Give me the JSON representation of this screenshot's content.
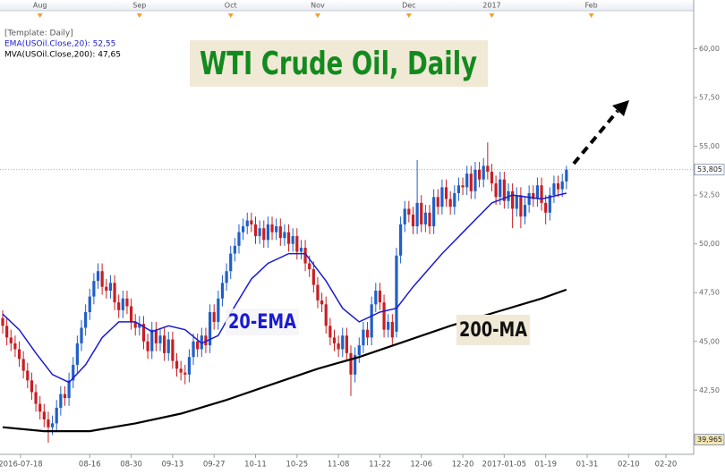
{
  "chart_data": {
    "type": "candlestick",
    "title": "WTI Crude Oil, Daily",
    "template": "[Template: Daily]",
    "annotations": [
      "20-EMA",
      "200-MA"
    ],
    "up_color": "#1f5fc8",
    "down_color": "#c81e23",
    "xlim": [
      -0.65,
      166.7
    ],
    "ylim": [
      39.35,
      61.95
    ],
    "yticks": [
      {
        "value": 42.5,
        "label": "42,50"
      },
      {
        "value": 45,
        "label": "45,00"
      },
      {
        "value": 47.5,
        "label": "47,50"
      },
      {
        "value": 50,
        "label": "50,00"
      },
      {
        "value": 52.5,
        "label": "52,50"
      },
      {
        "value": 55,
        "label": "55,00"
      },
      {
        "value": 57.5,
        "label": "57,50"
      },
      {
        "value": 60,
        "label": "60,00"
      }
    ],
    "xticks": [
      {
        "value": 4.3,
        "label": "2016-07-18"
      },
      {
        "value": 21,
        "label": "08-16"
      },
      {
        "value": 31,
        "label": "08-30"
      },
      {
        "value": 41,
        "label": "09-13"
      },
      {
        "value": 51,
        "label": "09-27"
      },
      {
        "value": 61,
        "label": "10-11"
      },
      {
        "value": 71,
        "label": "10-25"
      },
      {
        "value": 81,
        "label": "11-08"
      },
      {
        "value": 91,
        "label": "11-22"
      },
      {
        "value": 101,
        "label": "12-06"
      },
      {
        "value": 111,
        "label": "12-20"
      },
      {
        "value": 121,
        "label": "2017-01-05"
      },
      {
        "value": 131,
        "label": "01-19"
      },
      {
        "value": 141,
        "label": "01-31"
      },
      {
        "value": 151,
        "label": "02-10"
      },
      {
        "value": 160,
        "label": "02-20"
      }
    ],
    "month_ticks": [
      {
        "value": 9,
        "label": "Aug"
      },
      {
        "value": 33,
        "label": "Sep"
      },
      {
        "value": 55,
        "label": "Oct"
      },
      {
        "value": 76,
        "label": "Nov"
      },
      {
        "value": 98,
        "label": "Dec"
      },
      {
        "value": 118,
        "label": "2017"
      },
      {
        "value": 142,
        "label": "Feb"
      }
    ],
    "price_markers": [
      {
        "value": 53.805,
        "label": "53,805",
        "color": "#ffffff"
      },
      {
        "value": 39.965,
        "label": "39,965",
        "color": "#f3e6b4"
      }
    ],
    "series": [
      {
        "name": "EMA(USOil.Close,20): 52,55",
        "color": "#1a1ad2",
        "x": [
          0,
          4,
          8,
          12,
          16,
          20,
          24,
          28,
          32,
          36,
          40,
          44,
          48,
          52,
          56,
          60,
          64,
          69,
          73,
          78,
          82,
          86,
          91,
          95,
          99,
          106,
          112,
          118,
          123,
          130,
          136
        ],
        "values": [
          46.4,
          45.6,
          44.4,
          43.3,
          42.9,
          43.8,
          45.2,
          46.0,
          46.0,
          45.5,
          45.8,
          45.6,
          44.9,
          45.3,
          46.8,
          48.2,
          49.0,
          49.5,
          49.5,
          48.1,
          46.7,
          46.0,
          46.5,
          46.7,
          47.8,
          49.5,
          50.8,
          52.1,
          52.5,
          52.3,
          52.6
        ]
      },
      {
        "name": "MVA(USOil.Close,200): 47,65",
        "color": "#000000",
        "x": [
          0,
          10,
          21,
          32,
          43,
          54,
          65,
          76,
          86,
          97,
          108,
          119,
          130,
          136
        ],
        "values": [
          40.6,
          40.4,
          40.4,
          40.8,
          41.3,
          42.0,
          42.8,
          43.6,
          44.2,
          45.0,
          45.8,
          46.5,
          47.2,
          47.65
        ]
      }
    ],
    "candles": [
      [
        46.2,
        46.6,
        45.4,
        45.8
      ],
      [
        45.8,
        46.2,
        44.8,
        45.2
      ],
      [
        45.2,
        45.6,
        44.5,
        44.9
      ],
      [
        44.9,
        45.3,
        44.2,
        44.6
      ],
      [
        44.6,
        45.0,
        43.7,
        44.1
      ],
      [
        44.1,
        44.5,
        43.1,
        43.5
      ],
      [
        43.5,
        43.9,
        42.6,
        43.0
      ],
      [
        43.0,
        43.4,
        42.0,
        42.4
      ],
      [
        42.4,
        42.8,
        41.4,
        41.8
      ],
      [
        41.8,
        42.2,
        41.0,
        41.4
      ],
      [
        41.4,
        41.8,
        40.6,
        41.0
      ],
      [
        41.0,
        41.4,
        39.8,
        40.6
      ],
      [
        40.6,
        41.2,
        40.2,
        40.8
      ],
      [
        40.8,
        42.0,
        40.4,
        41.6
      ],
      [
        41.6,
        42.7,
        41.2,
        42.3
      ],
      [
        42.3,
        42.7,
        41.7,
        42.1
      ],
      [
        42.1,
        43.4,
        41.7,
        43.0
      ],
      [
        43.0,
        44.2,
        42.6,
        43.8
      ],
      [
        43.8,
        45.3,
        43.4,
        44.9
      ],
      [
        44.9,
        46.1,
        44.5,
        45.7
      ],
      [
        45.7,
        46.9,
        45.3,
        46.5
      ],
      [
        46.5,
        47.7,
        46.1,
        47.3
      ],
      [
        47.3,
        48.5,
        46.9,
        48.1
      ],
      [
        48.1,
        49.0,
        47.7,
        48.6
      ],
      [
        48.6,
        49.0,
        47.4,
        47.8
      ],
      [
        47.8,
        48.2,
        47.2,
        47.6
      ],
      [
        47.6,
        48.4,
        47.2,
        48.0
      ],
      [
        48.0,
        48.4,
        46.6,
        47.0
      ],
      [
        47.0,
        47.4,
        46.2,
        46.6
      ],
      [
        46.6,
        47.6,
        46.2,
        47.2
      ],
      [
        47.2,
        47.6,
        46.4,
        46.8
      ],
      [
        46.8,
        47.2,
        45.6,
        46.0
      ],
      [
        46.0,
        46.4,
        45.3,
        45.7
      ],
      [
        45.7,
        46.3,
        45.3,
        45.9
      ],
      [
        45.9,
        46.3,
        44.6,
        45.0
      ],
      [
        45.0,
        45.4,
        44.1,
        44.5
      ],
      [
        44.5,
        46.0,
        44.1,
        45.6
      ],
      [
        45.6,
        46.0,
        44.5,
        44.9
      ],
      [
        44.9,
        45.7,
        44.5,
        45.3
      ],
      [
        45.3,
        45.7,
        44.0,
        44.4
      ],
      [
        44.4,
        45.5,
        44.0,
        45.1
      ],
      [
        45.1,
        45.5,
        43.6,
        44.0
      ],
      [
        44.0,
        44.4,
        43.2,
        43.6
      ],
      [
        43.6,
        44.0,
        43.0,
        43.4
      ],
      [
        43.4,
        43.8,
        42.8,
        43.3
      ],
      [
        43.3,
        44.6,
        42.9,
        44.2
      ],
      [
        44.2,
        45.4,
        43.8,
        45.0
      ],
      [
        45.0,
        45.4,
        44.2,
        44.6
      ],
      [
        44.6,
        45.7,
        44.2,
        45.3
      ],
      [
        45.3,
        45.7,
        44.4,
        44.8
      ],
      [
        44.8,
        46.9,
        44.4,
        46.5
      ],
      [
        46.5,
        46.9,
        45.6,
        46.0
      ],
      [
        46.0,
        47.6,
        45.6,
        47.2
      ],
      [
        47.2,
        48.4,
        46.8,
        48.0
      ],
      [
        48.0,
        49.0,
        47.6,
        48.6
      ],
      [
        48.6,
        49.9,
        48.2,
        49.5
      ],
      [
        49.5,
        50.3,
        49.1,
        49.9
      ],
      [
        49.9,
        51.0,
        49.5,
        50.6
      ],
      [
        50.6,
        51.3,
        50.2,
        50.9
      ],
      [
        50.9,
        51.6,
        50.5,
        51.2
      ],
      [
        51.2,
        51.6,
        50.6,
        51.0
      ],
      [
        51.0,
        51.4,
        50.0,
        50.4
      ],
      [
        50.4,
        51.2,
        50.0,
        50.8
      ],
      [
        50.8,
        51.2,
        49.8,
        50.2
      ],
      [
        50.2,
        51.4,
        49.8,
        51.0
      ],
      [
        51.0,
        51.4,
        50.2,
        50.6
      ],
      [
        50.6,
        51.3,
        50.2,
        50.9
      ],
      [
        50.9,
        51.3,
        49.9,
        50.3
      ],
      [
        50.3,
        51.0,
        49.9,
        50.6
      ],
      [
        50.6,
        51.0,
        49.6,
        50.0
      ],
      [
        50.0,
        50.8,
        49.6,
        50.4
      ],
      [
        50.4,
        50.8,
        49.2,
        49.6
      ],
      [
        49.6,
        50.2,
        49.2,
        49.8
      ],
      [
        49.8,
        50.2,
        48.6,
        49.0
      ],
      [
        49.0,
        49.4,
        48.3,
        48.7
      ],
      [
        48.7,
        49.1,
        47.5,
        47.9
      ],
      [
        47.9,
        48.3,
        46.7,
        47.1
      ],
      [
        47.1,
        47.5,
        46.5,
        46.9
      ],
      [
        46.9,
        47.3,
        45.4,
        45.8
      ],
      [
        45.8,
        46.2,
        44.8,
        45.2
      ],
      [
        45.2,
        45.6,
        44.5,
        44.9
      ],
      [
        44.9,
        45.3,
        44.2,
        44.6
      ],
      [
        44.6,
        45.7,
        44.2,
        45.3
      ],
      [
        45.3,
        45.7,
        44.0,
        44.4
      ],
      [
        44.4,
        44.8,
        42.2,
        43.3
      ],
      [
        43.3,
        44.7,
        42.9,
        44.3
      ],
      [
        44.3,
        45.2,
        43.9,
        44.8
      ],
      [
        44.8,
        46.0,
        44.4,
        45.6
      ],
      [
        45.6,
        46.0,
        44.8,
        45.2
      ],
      [
        45.2,
        47.3,
        44.8,
        46.9
      ],
      [
        46.9,
        48.0,
        46.5,
        47.6
      ],
      [
        47.6,
        48.0,
        46.6,
        47.0
      ],
      [
        47.0,
        47.4,
        45.2,
        45.6
      ],
      [
        45.6,
        46.4,
        45.2,
        46.0
      ],
      [
        46.0,
        46.4,
        44.8,
        45.2
      ],
      [
        45.5,
        49.8,
        45.2,
        49.4
      ],
      [
        49.4,
        51.4,
        49.0,
        51.0
      ],
      [
        51.0,
        52.2,
        50.6,
        51.8
      ],
      [
        51.8,
        52.2,
        51.1,
        51.5
      ],
      [
        51.5,
        51.9,
        50.5,
        50.9
      ],
      [
        50.9,
        54.3,
        50.5,
        52.1
      ],
      [
        52.1,
        52.5,
        50.6,
        51.0
      ],
      [
        51.0,
        52.0,
        50.6,
        51.6
      ],
      [
        51.6,
        52.0,
        50.5,
        50.9
      ],
      [
        50.9,
        52.8,
        50.5,
        52.4
      ],
      [
        52.4,
        52.8,
        51.5,
        51.9
      ],
      [
        51.9,
        53.3,
        51.5,
        52.9
      ],
      [
        52.9,
        53.3,
        51.9,
        52.3
      ],
      [
        52.3,
        52.7,
        51.5,
        51.9
      ],
      [
        51.9,
        53.0,
        51.5,
        52.6
      ],
      [
        52.6,
        53.4,
        52.2,
        53.0
      ],
      [
        53.0,
        53.4,
        52.5,
        52.9
      ],
      [
        52.9,
        54.0,
        52.5,
        53.6
      ],
      [
        53.6,
        54.0,
        52.3,
        52.7
      ],
      [
        52.7,
        54.2,
        52.3,
        53.8
      ],
      [
        53.8,
        54.2,
        52.9,
        53.3
      ],
      [
        53.3,
        54.4,
        52.9,
        54.0
      ],
      [
        54.0,
        55.2,
        53.3,
        53.7
      ],
      [
        53.7,
        54.1,
        52.7,
        53.1
      ],
      [
        53.1,
        53.5,
        52.0,
        52.4
      ],
      [
        52.4,
        53.7,
        52.0,
        53.3
      ],
      [
        53.3,
        53.7,
        51.8,
        52.2
      ],
      [
        52.2,
        53.1,
        51.8,
        52.7
      ],
      [
        52.7,
        53.1,
        50.8,
        51.8
      ],
      [
        51.8,
        52.9,
        51.4,
        52.5
      ],
      [
        52.5,
        52.9,
        50.8,
        51.4
      ],
      [
        51.4,
        52.4,
        51.0,
        52.0
      ],
      [
        52.0,
        53.0,
        51.6,
        52.6
      ],
      [
        52.6,
        53.0,
        51.9,
        52.3
      ],
      [
        52.3,
        53.4,
        51.9,
        53.0
      ],
      [
        53.0,
        53.4,
        51.7,
        52.1
      ],
      [
        52.1,
        52.5,
        51.0,
        51.6
      ],
      [
        51.6,
        52.9,
        51.2,
        52.5
      ],
      [
        52.5,
        53.5,
        52.1,
        53.1
      ],
      [
        53.1,
        53.5,
        52.4,
        52.8
      ],
      [
        52.8,
        53.6,
        52.4,
        53.2
      ],
      [
        53.2,
        54.0,
        52.8,
        53.8
      ]
    ]
  }
}
